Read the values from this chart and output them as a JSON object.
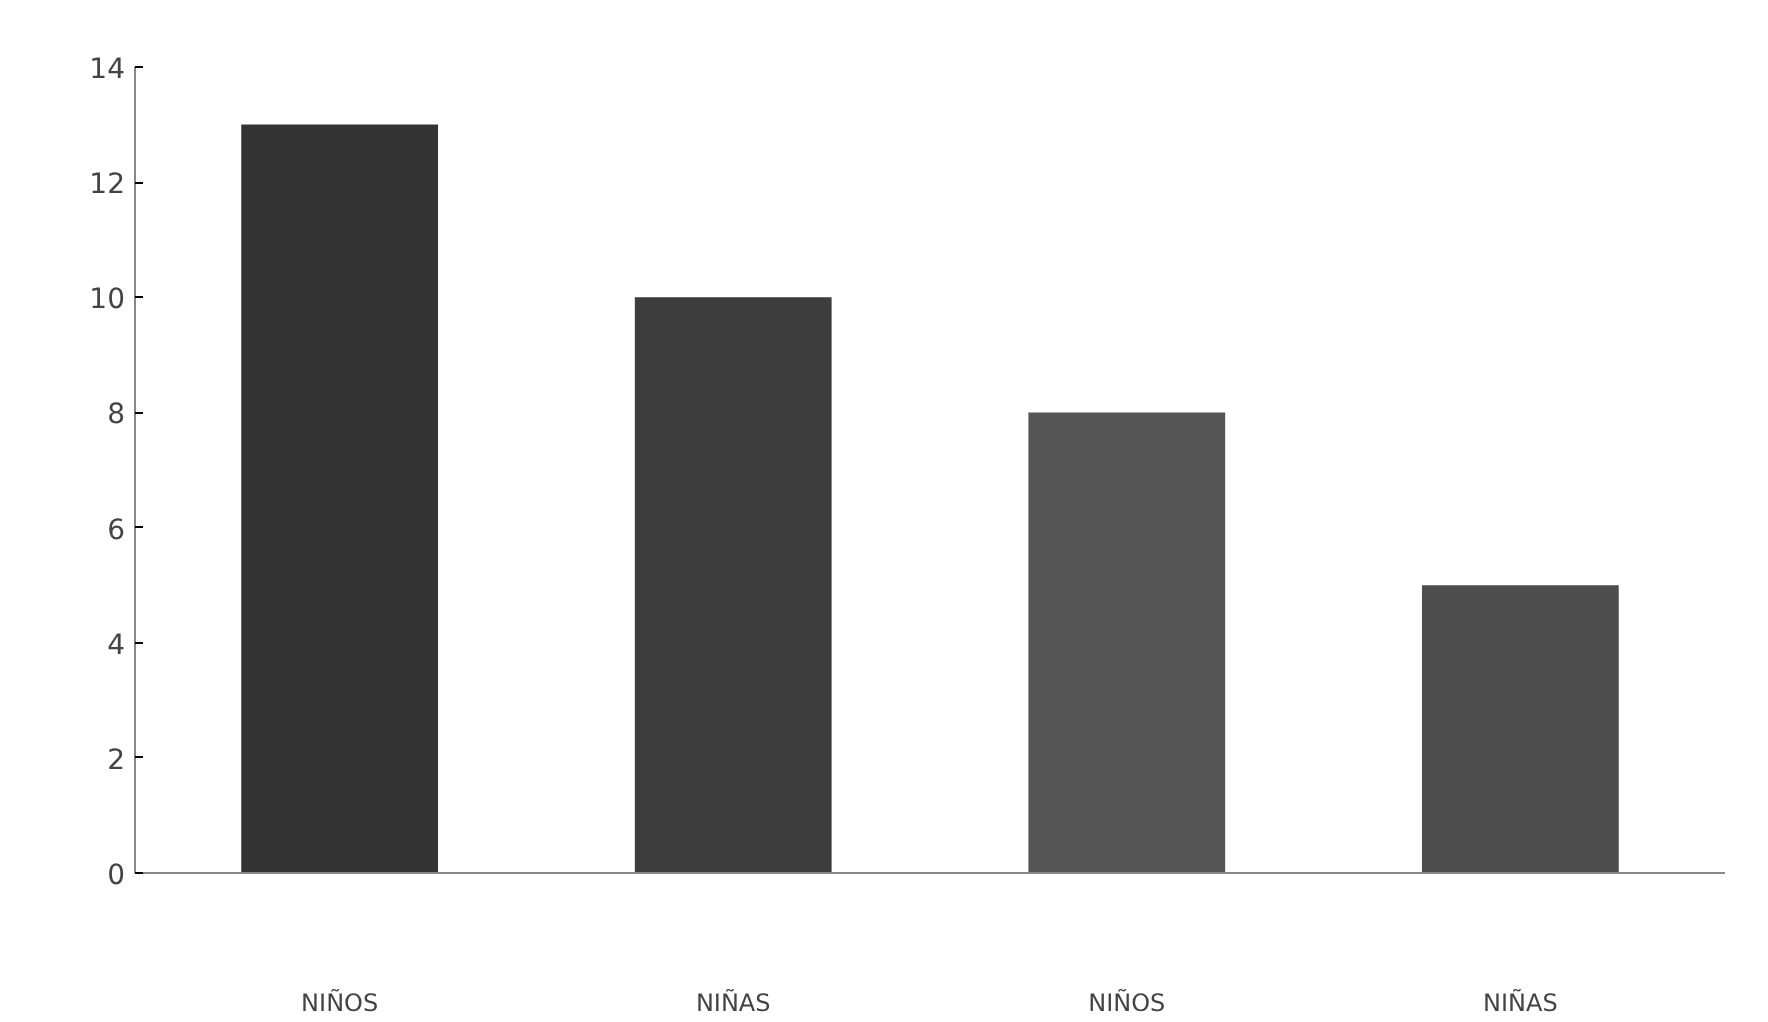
{
  "chart_data": {
    "type": "bar",
    "categories": [
      "NIÑOS",
      "NIÑAS",
      "NIÑOS",
      "NIÑAS"
    ],
    "values": [
      13,
      10,
      8,
      5
    ],
    "colors": [
      "#333333",
      "#3d3d3d",
      "#555555",
      "#4e4e4e"
    ],
    "ylim": [
      0,
      14
    ],
    "yticks": [
      0,
      2,
      4,
      6,
      8,
      10,
      12,
      14
    ],
    "grid": false
  }
}
